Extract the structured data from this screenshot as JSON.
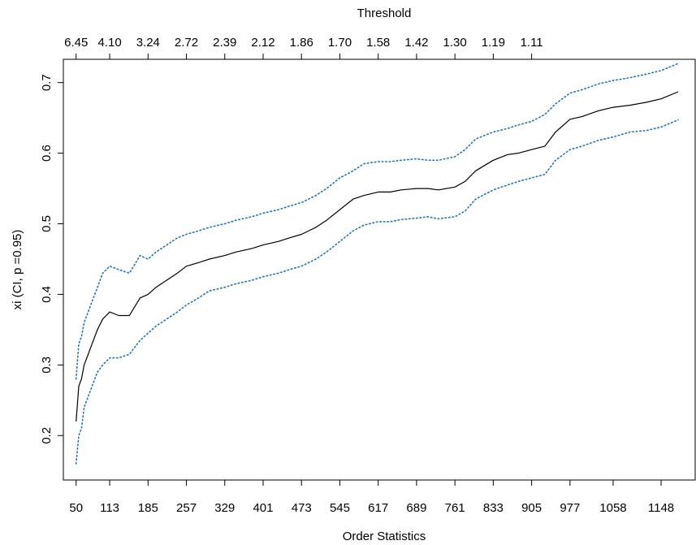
{
  "chart_data": {
    "type": "line",
    "title": "",
    "top_axis_label": "Threshold",
    "xlabel": "Order Statistics",
    "ylabel": "xi (CI, p =0.95)",
    "xlim": [
      26,
      1212
    ],
    "ylim": [
      0.137,
      0.733
    ],
    "x_ticks": [
      "50",
      "113",
      "185",
      "257",
      "329",
      "401",
      "473",
      "545",
      "617",
      "689",
      "761",
      "833",
      "905",
      "977",
      "1058",
      "1148"
    ],
    "x_tick_values": [
      50,
      113,
      185,
      257,
      329,
      401,
      473,
      545,
      617,
      689,
      761,
      833,
      905,
      977,
      1058,
      1148
    ],
    "top_ticks": [
      "6.45",
      "4.10",
      "3.24",
      "2.72",
      "2.39",
      "2.12",
      "1.86",
      "1.70",
      "1.58",
      "1.42",
      "1.30",
      "1.19",
      "1.11"
    ],
    "top_tick_positions": [
      50,
      113,
      185,
      257,
      329,
      401,
      473,
      545,
      617,
      689,
      761,
      833,
      905
    ],
    "y_ticks": [
      "0.2",
      "0.3",
      "0.4",
      "0.5",
      "0.6",
      "0.7"
    ],
    "y_tick_values": [
      0.2,
      0.3,
      0.4,
      0.5,
      0.6,
      0.7
    ],
    "grid": false,
    "legend": "none",
    "colors": {
      "estimate": "#000000",
      "ci": "#1f77b4"
    },
    "x": [
      50,
      55,
      60,
      65,
      70,
      80,
      90,
      100,
      113,
      130,
      150,
      170,
      185,
      200,
      220,
      240,
      257,
      280,
      300,
      329,
      350,
      380,
      401,
      430,
      450,
      473,
      500,
      520,
      545,
      570,
      590,
      617,
      640,
      660,
      689,
      710,
      730,
      761,
      780,
      800,
      833,
      860,
      880,
      905,
      930,
      950,
      977,
      1000,
      1030,
      1058,
      1090,
      1120,
      1148,
      1180
    ],
    "series": [
      {
        "role": "estimate",
        "style": "solid",
        "values": [
          0.22,
          0.27,
          0.28,
          0.3,
          0.31,
          0.33,
          0.35,
          0.365,
          0.375,
          0.37,
          0.37,
          0.395,
          0.4,
          0.41,
          0.42,
          0.43,
          0.44,
          0.445,
          0.45,
          0.455,
          0.46,
          0.465,
          0.47,
          0.475,
          0.48,
          0.485,
          0.495,
          0.505,
          0.52,
          0.535,
          0.54,
          0.545,
          0.545,
          0.548,
          0.55,
          0.55,
          0.548,
          0.552,
          0.56,
          0.575,
          0.59,
          0.598,
          0.6,
          0.605,
          0.61,
          0.63,
          0.648,
          0.652,
          0.66,
          0.665,
          0.668,
          0.672,
          0.677,
          0.687
        ]
      },
      {
        "role": "upper-ci",
        "style": "dotted",
        "values": [
          0.28,
          0.33,
          0.34,
          0.36,
          0.37,
          0.39,
          0.41,
          0.43,
          0.44,
          0.435,
          0.43,
          0.455,
          0.45,
          0.46,
          0.47,
          0.48,
          0.485,
          0.49,
          0.495,
          0.5,
          0.505,
          0.51,
          0.515,
          0.52,
          0.525,
          0.53,
          0.54,
          0.55,
          0.565,
          0.575,
          0.585,
          0.588,
          0.588,
          0.59,
          0.592,
          0.59,
          0.59,
          0.595,
          0.605,
          0.62,
          0.63,
          0.635,
          0.64,
          0.645,
          0.655,
          0.67,
          0.685,
          0.69,
          0.698,
          0.703,
          0.707,
          0.712,
          0.717,
          0.727
        ]
      },
      {
        "role": "lower-ci",
        "style": "dotted",
        "values": [
          0.16,
          0.2,
          0.21,
          0.24,
          0.25,
          0.27,
          0.29,
          0.3,
          0.31,
          0.31,
          0.315,
          0.335,
          0.345,
          0.355,
          0.365,
          0.375,
          0.385,
          0.395,
          0.405,
          0.41,
          0.415,
          0.42,
          0.425,
          0.43,
          0.435,
          0.44,
          0.45,
          0.46,
          0.475,
          0.49,
          0.498,
          0.503,
          0.503,
          0.506,
          0.508,
          0.51,
          0.507,
          0.51,
          0.518,
          0.535,
          0.548,
          0.555,
          0.56,
          0.565,
          0.57,
          0.59,
          0.605,
          0.61,
          0.618,
          0.623,
          0.63,
          0.632,
          0.637,
          0.647
        ]
      }
    ]
  }
}
